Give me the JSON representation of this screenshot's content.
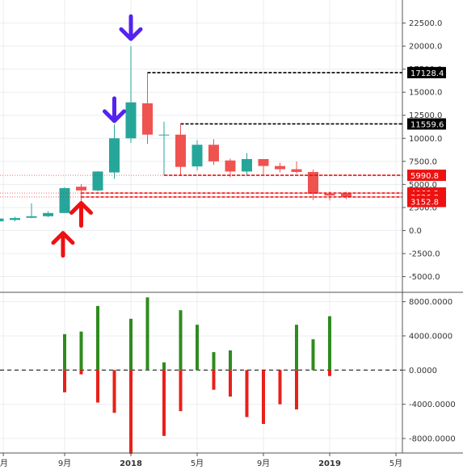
{
  "colors": {
    "up": "#26a69a",
    "down": "#ef5350",
    "hist_pos": "#2e8b1e",
    "hist_neg": "#e8201a",
    "grid": "#e9edf1",
    "axis_line": "#555555",
    "arrow_blue": "#5522ee",
    "arrow_red": "#ee1111",
    "tag_red": "#ee1111",
    "tag_black": "#000000"
  },
  "chart_data": [
    {
      "type": "candlestick",
      "price_axis": {
        "range": [
          -6700,
          25000
        ],
        "tick_values": [
          22500,
          20000,
          17500,
          15000,
          12500,
          10000,
          7500,
          5000,
          2500,
          0,
          -2500,
          -5000
        ],
        "tick_labels": [
          "22500.0",
          "20000.0",
          "17500.0",
          "15000.0",
          "12500.0",
          "10000.0",
          "7500.0",
          "5000.0",
          "2500.0",
          "0.0",
          "-2500.0",
          "-5000.0"
        ]
      },
      "time_axis": {
        "tick_labels": [
          "月",
          "9月",
          "2018",
          "5月",
          "9月",
          "2019",
          "5月"
        ],
        "tick_months": [
          4.3,
          8,
          12,
          16,
          20,
          24,
          28
        ]
      },
      "candles": [
        {
          "m": 4,
          "o": 1000,
          "h": 1300,
          "l": 700,
          "c": 1300
        },
        {
          "m": 5,
          "o": 1150,
          "h": 1500,
          "l": 1000,
          "c": 1350
        },
        {
          "m": 6,
          "o": 1380,
          "h": 2950,
          "l": 1350,
          "c": 1550
        },
        {
          "m": 7,
          "o": 1550,
          "h": 2100,
          "l": 1450,
          "c": 1900
        },
        {
          "m": 8,
          "o": 1900,
          "h": 4700,
          "l": 1900,
          "c": 4600
        },
        {
          "m": 9,
          "o": 4750,
          "h": 5050,
          "l": 3150,
          "c": 4350
        },
        {
          "m": 10,
          "o": 4350,
          "h": 6450,
          "l": 4250,
          "c": 6400
        },
        {
          "m": 11,
          "o": 6300,
          "h": 11500,
          "l": 5600,
          "c": 10000
        },
        {
          "m": 12,
          "o": 10000,
          "h": 20000,
          "l": 9500,
          "c": 13900
        },
        {
          "m": 13,
          "o": 13800,
          "h": 17100,
          "l": 9400,
          "c": 10400
        },
        {
          "m": 14,
          "o": 10400,
          "h": 11800,
          "l": 6000,
          "c": 10400
        },
        {
          "m": 15,
          "o": 10400,
          "h": 11500,
          "l": 6000,
          "c": 6900
        },
        {
          "m": 16,
          "o": 6950,
          "h": 9800,
          "l": 6500,
          "c": 9300
        },
        {
          "m": 17,
          "o": 9300,
          "h": 9900,
          "l": 7100,
          "c": 7500
        },
        {
          "m": 18,
          "o": 7600,
          "h": 7800,
          "l": 5800,
          "c": 6400
        },
        {
          "m": 19,
          "o": 6400,
          "h": 8400,
          "l": 5900,
          "c": 7750
        },
        {
          "m": 20,
          "o": 7750,
          "h": 7750,
          "l": 6100,
          "c": 7000
        },
        {
          "m": 21,
          "o": 7000,
          "h": 7350,
          "l": 6300,
          "c": 6650
        },
        {
          "m": 22,
          "o": 6650,
          "h": 7500,
          "l": 6200,
          "c": 6350
        },
        {
          "m": 23,
          "o": 6350,
          "h": 6600,
          "l": 3300,
          "c": 4000
        },
        {
          "m": 24,
          "o": 4000,
          "h": 4250,
          "l": 3250,
          "c": 3800
        },
        {
          "m": 25,
          "o": 4050,
          "h": 4200,
          "l": 3400,
          "c": 3650
        }
      ],
      "price_tags": [
        {
          "value": 17128.4,
          "label": "17128.4",
          "style": "black",
          "from_m": 13
        },
        {
          "value": 11559.6,
          "label": "11559.6",
          "style": "black",
          "from_m": 15
        },
        {
          "value": 5990.8,
          "label": "5990.8",
          "style": "red",
          "from_m": 14
        },
        {
          "value": 4068.3,
          "label": "4068.3",
          "style": "red",
          "from_m": 9
        },
        {
          "value": 3636.8,
          "label": "3636.8",
          "style": "red",
          "from_m": 9
        }
      ],
      "price_tags_plain": [
        {
          "value": 3152.8,
          "label": "3152.8"
        }
      ],
      "markers": [
        {
          "m": 12,
          "value": 20600,
          "kind": "down",
          "color": "blue"
        },
        {
          "m": 11,
          "value": 11700,
          "kind": "down",
          "color": "blue"
        },
        {
          "m": 9,
          "value": 3150,
          "kind": "up",
          "color": "red"
        },
        {
          "m": 7.9,
          "value": -100,
          "kind": "up",
          "color": "red"
        }
      ]
    },
    {
      "type": "bar",
      "value_axis": {
        "range": [
          -9700,
          9000
        ],
        "tick_values": [
          8000,
          4000,
          0,
          -4000,
          -8000
        ],
        "tick_labels": [
          "8000.0000",
          "4000.0000",
          "0.0000",
          "-4000.0000",
          "-8000.0000"
        ]
      },
      "zero_line": "dashed",
      "bars": [
        {
          "m": 8,
          "pos": 4200,
          "neg": -2600
        },
        {
          "m": 9,
          "pos": 4500,
          "neg": -500
        },
        {
          "m": 10,
          "pos": 7500,
          "neg": -3800
        },
        {
          "m": 11,
          "pos": 0,
          "neg": -5000
        },
        {
          "m": 12,
          "pos": 6000,
          "neg": -9800
        },
        {
          "m": 13,
          "pos": 8500,
          "neg": 0
        },
        {
          "m": 14,
          "pos": 900,
          "neg": -7700
        },
        {
          "m": 15,
          "pos": 7000,
          "neg": -4800
        },
        {
          "m": 16,
          "pos": 5300,
          "neg": 0
        },
        {
          "m": 17,
          "pos": 2100,
          "neg": -2300
        },
        {
          "m": 18,
          "pos": 2300,
          "neg": -3100
        },
        {
          "m": 19,
          "pos": 0,
          "neg": -5500
        },
        {
          "m": 20,
          "pos": 0,
          "neg": -6300
        },
        {
          "m": 21,
          "pos": 0,
          "neg": -4000
        },
        {
          "m": 22,
          "pos": 5300,
          "neg": -4600
        },
        {
          "m": 23,
          "pos": 3600,
          "neg": 0
        },
        {
          "m": 24,
          "pos": 6300,
          "neg": -700
        }
      ]
    }
  ]
}
